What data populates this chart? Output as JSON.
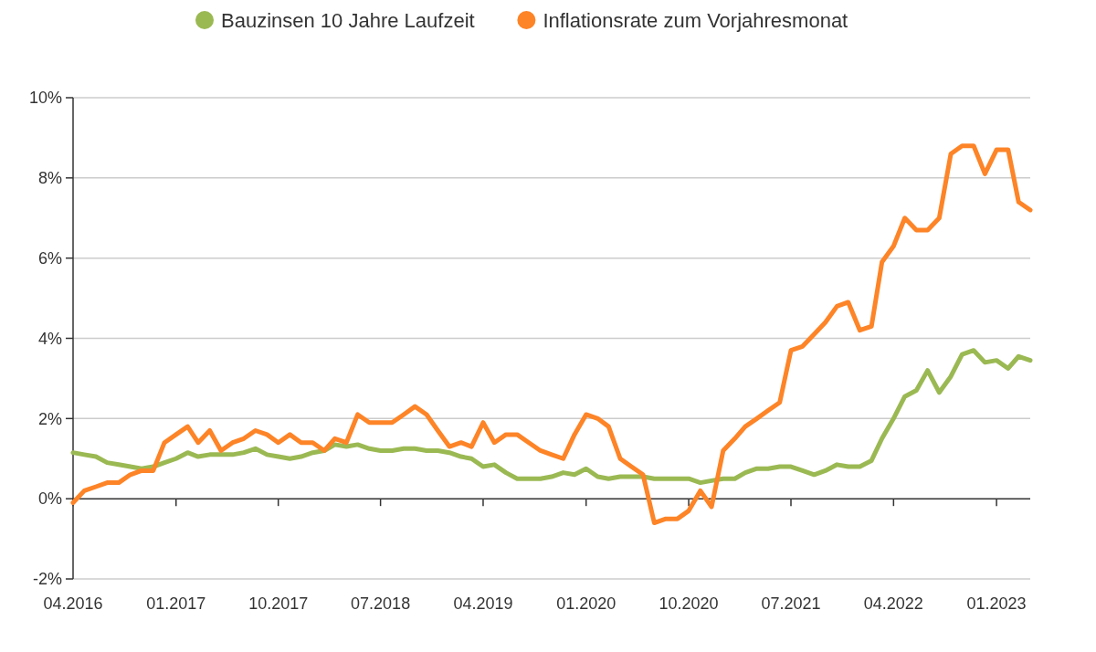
{
  "chart_data": {
    "type": "line",
    "x": [
      "2016-04",
      "2016-05",
      "2016-06",
      "2016-07",
      "2016-08",
      "2016-09",
      "2016-10",
      "2016-11",
      "2016-12",
      "2017-01",
      "2017-02",
      "2017-03",
      "2017-04",
      "2017-05",
      "2017-06",
      "2017-07",
      "2017-08",
      "2017-09",
      "2017-10",
      "2017-11",
      "2017-12",
      "2018-01",
      "2018-02",
      "2018-03",
      "2018-04",
      "2018-05",
      "2018-06",
      "2018-07",
      "2018-08",
      "2018-09",
      "2018-10",
      "2018-11",
      "2018-12",
      "2019-01",
      "2019-02",
      "2019-03",
      "2019-04",
      "2019-05",
      "2019-06",
      "2019-07",
      "2019-08",
      "2019-09",
      "2019-10",
      "2019-11",
      "2019-12",
      "2020-01",
      "2020-02",
      "2020-03",
      "2020-04",
      "2020-05",
      "2020-06",
      "2020-07",
      "2020-08",
      "2020-09",
      "2020-10",
      "2020-11",
      "2020-12",
      "2021-01",
      "2021-02",
      "2021-03",
      "2021-04",
      "2021-05",
      "2021-06",
      "2021-07",
      "2021-08",
      "2021-09",
      "2021-10",
      "2021-11",
      "2021-12",
      "2022-01",
      "2022-02",
      "2022-03",
      "2022-04",
      "2022-05",
      "2022-06",
      "2022-07",
      "2022-08",
      "2022-09",
      "2022-10",
      "2022-11",
      "2022-12",
      "2023-01",
      "2023-02",
      "2023-03",
      "2023-04"
    ],
    "series": [
      {
        "name": "Bauzinsen 10 Jahre Laufzeit",
        "color": "#9bb953",
        "values": [
          1.15,
          1.1,
          1.05,
          0.9,
          0.85,
          0.8,
          0.75,
          0.8,
          0.9,
          1.0,
          1.15,
          1.05,
          1.1,
          1.1,
          1.1,
          1.15,
          1.25,
          1.1,
          1.05,
          1.0,
          1.05,
          1.15,
          1.2,
          1.35,
          1.3,
          1.35,
          1.25,
          1.2,
          1.2,
          1.25,
          1.25,
          1.2,
          1.2,
          1.15,
          1.05,
          1.0,
          0.8,
          0.85,
          0.65,
          0.5,
          0.5,
          0.5,
          0.55,
          0.65,
          0.6,
          0.75,
          0.55,
          0.5,
          0.55,
          0.55,
          0.55,
          0.5,
          0.5,
          0.5,
          0.5,
          0.4,
          0.45,
          0.5,
          0.5,
          0.65,
          0.75,
          0.75,
          0.8,
          0.8,
          0.7,
          0.6,
          0.7,
          0.85,
          0.8,
          0.8,
          0.95,
          1.5,
          2.0,
          2.55,
          2.7,
          3.2,
          2.65,
          3.05,
          3.6,
          3.7,
          3.4,
          3.45,
          3.25,
          3.55,
          3.45
        ]
      },
      {
        "name": "Inflationsrate zum Vorjahresmonat",
        "color": "#fd8427",
        "values": [
          -0.1,
          0.2,
          0.3,
          0.4,
          0.4,
          0.6,
          0.7,
          0.7,
          1.4,
          1.6,
          1.8,
          1.4,
          1.7,
          1.2,
          1.4,
          1.5,
          1.7,
          1.6,
          1.4,
          1.6,
          1.4,
          1.4,
          1.2,
          1.5,
          1.4,
          2.1,
          1.9,
          1.9,
          1.9,
          2.1,
          2.3,
          2.1,
          1.7,
          1.3,
          1.4,
          1.3,
          1.9,
          1.4,
          1.6,
          1.6,
          1.4,
          1.2,
          1.1,
          1.0,
          1.6,
          2.1,
          2.0,
          1.8,
          1.0,
          0.8,
          0.6,
          -0.6,
          -0.5,
          -0.5,
          -0.3,
          0.2,
          -0.2,
          1.2,
          1.5,
          1.8,
          2.0,
          2.2,
          2.4,
          3.7,
          3.8,
          4.1,
          4.4,
          4.8,
          4.9,
          4.2,
          4.3,
          5.9,
          6.3,
          7.0,
          6.7,
          6.7,
          7.0,
          8.6,
          8.8,
          8.8,
          8.1,
          8.7,
          8.7,
          7.4,
          7.2
        ]
      }
    ],
    "xlim": [
      "2016-04",
      "2023-04"
    ],
    "xticks": [
      {
        "value": "2016-04",
        "label": "04.2016"
      },
      {
        "value": "2017-01",
        "label": "01.2017"
      },
      {
        "value": "2017-10",
        "label": "10.2017"
      },
      {
        "value": "2018-07",
        "label": "07.2018"
      },
      {
        "value": "2019-04",
        "label": "04.2019"
      },
      {
        "value": "2020-01",
        "label": "01.2020"
      },
      {
        "value": "2020-10",
        "label": "10.2020"
      },
      {
        "value": "2021-07",
        "label": "07.2021"
      },
      {
        "value": "2022-04",
        "label": "04.2022"
      },
      {
        "value": "2023-01",
        "label": "01.2023"
      }
    ],
    "ylim": [
      -2,
      10
    ],
    "yticks": [
      {
        "value": -2,
        "label": "-2%"
      },
      {
        "value": 0,
        "label": "0%"
      },
      {
        "value": 2,
        "label": "2%"
      },
      {
        "value": 4,
        "label": "4%"
      },
      {
        "value": 6,
        "label": "6%"
      },
      {
        "value": 8,
        "label": "8%"
      },
      {
        "value": 10,
        "label": "10%"
      }
    ],
    "grid": "y",
    "legend": "top",
    "marker": "none",
    "line_style": "solid"
  }
}
